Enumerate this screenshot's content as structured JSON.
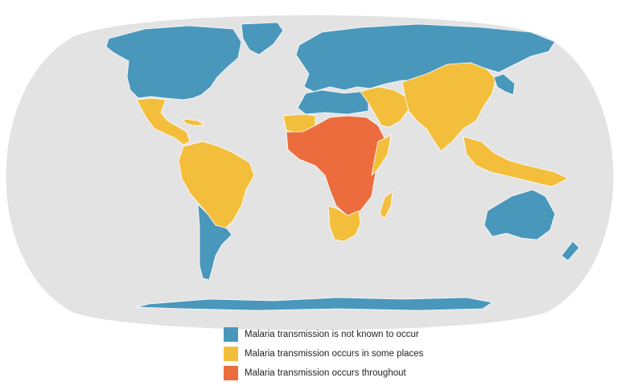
{
  "colors": {
    "ocean": "#e3e3e3",
    "not_known": "#4a97bc",
    "some_places": "#f2be3c",
    "throughout": "#ec6c3d",
    "border": "#ffffff"
  },
  "legend": {
    "items": [
      {
        "label": "Malaria transmission is not known to occur",
        "color": "#4a97bc"
      },
      {
        "label": "Malaria transmission occurs in some places",
        "color": "#f2be3c"
      },
      {
        "label": "Malaria transmission occurs throughout",
        "color": "#ec6c3d"
      }
    ]
  },
  "regions": [
    {
      "name": "north-america",
      "category": "not_known"
    },
    {
      "name": "greenland",
      "category": "not_known"
    },
    {
      "name": "mexico-central-america",
      "category": "some_places"
    },
    {
      "name": "caribbean",
      "category": "some_places"
    },
    {
      "name": "south-america-north",
      "category": "some_places"
    },
    {
      "name": "south-america-south",
      "category": "not_known"
    },
    {
      "name": "europe-russia",
      "category": "not_known"
    },
    {
      "name": "north-africa",
      "category": "not_known"
    },
    {
      "name": "west-africa-sahel",
      "category": "some_places"
    },
    {
      "name": "central-africa",
      "category": "throughout"
    },
    {
      "name": "east-africa",
      "category": "some_places"
    },
    {
      "name": "southern-africa",
      "category": "some_places"
    },
    {
      "name": "madagascar",
      "category": "some_places"
    },
    {
      "name": "middle-east",
      "category": "some_places"
    },
    {
      "name": "south-asia-china",
      "category": "some_places"
    },
    {
      "name": "japan-korea",
      "category": "not_known"
    },
    {
      "name": "southeast-asia-islands",
      "category": "some_places"
    },
    {
      "name": "australia",
      "category": "not_known"
    },
    {
      "name": "new-zealand",
      "category": "not_known"
    },
    {
      "name": "antarctica",
      "category": "not_known"
    }
  ]
}
